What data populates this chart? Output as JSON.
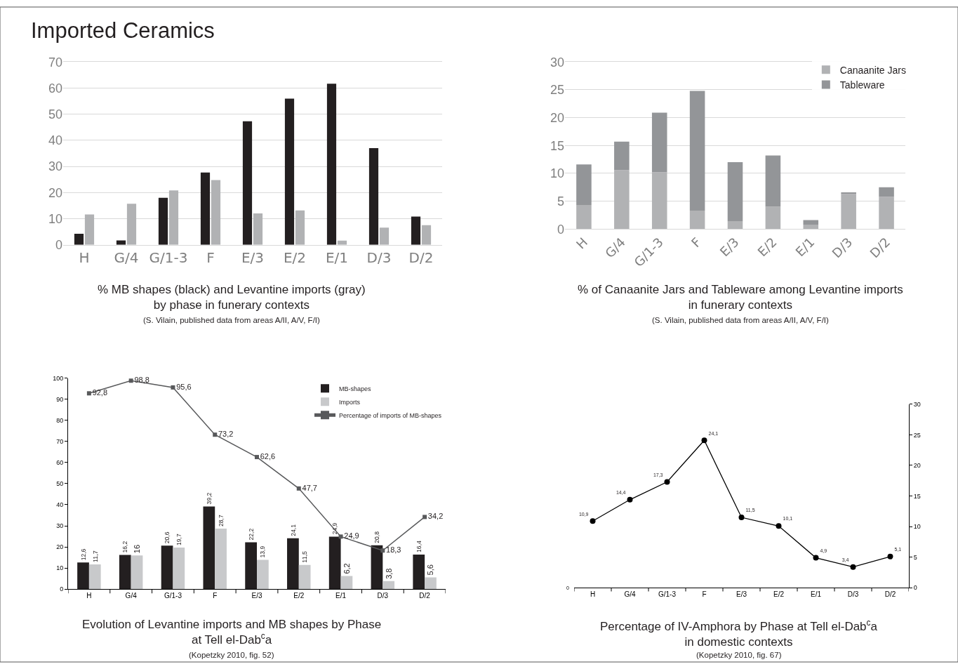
{
  "chart_data": [
    {
      "type": "bar",
      "title": "Imported Ceramics",
      "xlabel": "% MB shapes (black) and Levantine imports (gray)\nby phase in funerary contexts",
      "annotations": [
        "(S. Vilain, published data from areas A/II, A/V, F/I)"
      ],
      "categories": [
        "H",
        "G/4",
        "G/1-3",
        "F",
        "E/3",
        "E/2",
        "E/1",
        "D/3",
        "D/2"
      ],
      "series": [
        {
          "color": "#231f20",
          "values": [
            4.2,
            1.7,
            18,
            27.7,
            47.3,
            56,
            61.7,
            37,
            10.8
          ]
        },
        {
          "color": "#b1b2b4",
          "values": [
            11.6,
            15.7,
            20.8,
            24.8,
            12,
            13.2,
            1.6,
            6.6,
            7.5
          ]
        }
      ],
      "ylim": [
        0,
        70
      ],
      "yticks": [
        0,
        10,
        20,
        30,
        40,
        50,
        60,
        70
      ],
      "grid": "y",
      "legend": false
    },
    {
      "type": "bar",
      "xlabel": "% of Canaanite Jars and Tableware among Levantine imports\nin funerary contexts",
      "annotations": [
        "(S. Vilain, published data from areas A/II, A/V, F/I)"
      ],
      "categories": [
        "H",
        "G/4",
        "G/1-3",
        "F",
        "E/3",
        "E/2",
        "E/1",
        "D/3",
        "D/2"
      ],
      "stacked": true,
      "series": [
        {
          "name": "Canaanite Jars",
          "color": "#b1b2b4",
          "values": [
            4.3,
            10.6,
            10.2,
            3.3,
            1.4,
            4,
            0.8,
            6.3,
            5.8
          ]
        },
        {
          "name": "Tableware",
          "color": "#939598",
          "values": [
            7.3,
            5.1,
            10.7,
            21.5,
            10.6,
            9.2,
            0.8,
            0.3,
            1.7
          ]
        }
      ],
      "ylim": [
        0,
        30
      ],
      "yticks": [
        0,
        5,
        10,
        15,
        20,
        25,
        30
      ],
      "grid": "y",
      "legend": "top right"
    },
    {
      "type": "bar",
      "xlabel": "Evolution of Levantine imports and MB shapes by Phase\nat Tell el-Dab$^{c}$a",
      "annotations": [
        "(Kopetzky 2010, fig. 52)"
      ],
      "categories": [
        "H",
        "G/4",
        "G/1-3",
        "F",
        "E/3",
        "E/2",
        "E/1",
        "D/3",
        "D/2"
      ],
      "series": [
        {
          "name": "MB-shapes",
          "color": "#231f20",
          "values": [
            12.6,
            16.2,
            20.6,
            39.2,
            22.2,
            24.1,
            24.9,
            20.8,
            16.4
          ],
          "value_labels": [
            "12,6",
            "16,2",
            "20,6",
            "39,2",
            "22,2",
            "24,1",
            "24,9",
            "20,8",
            "16,4"
          ]
        },
        {
          "name": "Imports",
          "color": "#c8c9cb",
          "values": [
            11.7,
            16,
            19.7,
            28.7,
            13.9,
            11.5,
            6.2,
            3.8,
            5.6
          ],
          "value_labels": [
            "11,7",
            "16",
            "19,7",
            "28,7",
            "13,9",
            "11,5",
            "6,2",
            "3,8",
            "5,6"
          ]
        },
        {
          "name": "Percentage of imports of MB-shapes",
          "type": "line",
          "color": "#58595b",
          "values": [
            92.8,
            98.8,
            95.6,
            73.2,
            62.6,
            47.7,
            24.9,
            18.3,
            34.2
          ],
          "value_labels": [
            "92,8",
            "98,8",
            "95,6",
            "73,2",
            "62,6",
            "47,7",
            "24,9",
            "18,3",
            "34,2"
          ]
        }
      ],
      "marker": "square",
      "ylim": [
        0,
        100
      ],
      "yticks": [
        0,
        10,
        20,
        30,
        40,
        50,
        60,
        70,
        80,
        90,
        100
      ],
      "grid": false,
      "legend": "top right"
    },
    {
      "type": "line",
      "xlabel": "Percentage of IV-Amphora by Phase at Tell el-Dab$^{c}$a\nin domestic contexts",
      "annotations": [
        "(Kopetzky 2010, fig. 67)",
        "0"
      ],
      "categories": [
        "H",
        "G/4",
        "G/1-3",
        "F",
        "E/3",
        "E/2",
        "E/1",
        "D/3",
        "D/2"
      ],
      "series": [
        {
          "color": "#000000",
          "values": [
            10.9,
            14.4,
            17.3,
            24.1,
            11.5,
            10.1,
            4.9,
            3.4,
            5.1
          ],
          "value_labels": [
            "10,9",
            "14,4",
            "17,3",
            "24,1",
            "11,5",
            "10,1",
            "4,9",
            "3,4",
            "5,1"
          ]
        }
      ],
      "marker": "circle",
      "ylim": [
        0,
        30
      ],
      "yticks": [
        0,
        5,
        10,
        15,
        20,
        25,
        30
      ],
      "grid": false,
      "legend": false
    }
  ]
}
